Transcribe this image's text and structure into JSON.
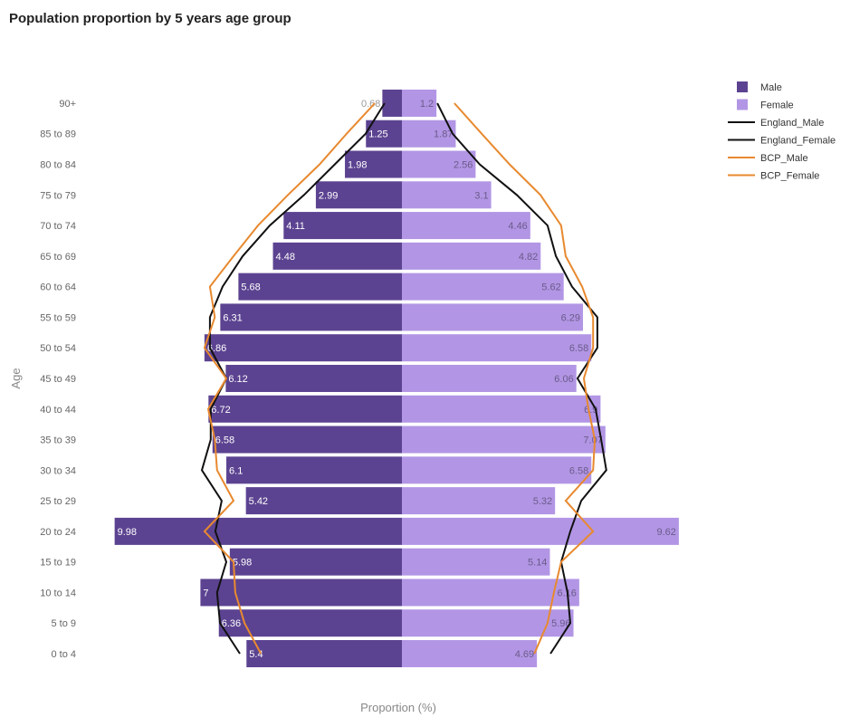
{
  "chart_data": {
    "type": "bar",
    "orientation": "horizontal-pyramid",
    "title": "Population proportion by 5 years age group",
    "xlabel": "Proportion (%)",
    "ylabel": "Age",
    "categories": [
      "0 to 4",
      "5 to 9",
      "10 to 14",
      "15 to 19",
      "20 to 24",
      "25 to 29",
      "30 to 34",
      "35 to 39",
      "40 to 44",
      "45 to 49",
      "50 to 54",
      "55 to 59",
      "60 to 64",
      "65 to 69",
      "70 to 74",
      "75 to 79",
      "80 to 84",
      "85 to 89",
      "90+"
    ],
    "bar_series": [
      {
        "name": "Male",
        "color": "#5c4391",
        "values": [
          5.4,
          6.36,
          7,
          5.98,
          9.98,
          5.42,
          6.1,
          6.58,
          6.72,
          6.12,
          6.86,
          6.31,
          5.68,
          4.48,
          4.11,
          2.99,
          1.98,
          1.25,
          0.68
        ]
      },
      {
        "name": "Female",
        "color": "#b296e5",
        "values": [
          4.69,
          5.96,
          6.16,
          5.14,
          9.62,
          5.32,
          6.58,
          7.07,
          6.9,
          6.06,
          6.58,
          6.29,
          5.62,
          4.82,
          4.46,
          3.1,
          2.56,
          1.87,
          1.2
        ]
      }
    ],
    "line_series": [
      {
        "name": "England_Male",
        "color": "#111111",
        "side": "left",
        "values": [
          5.63,
          6.32,
          6.42,
          6.1,
          6.48,
          6.26,
          6.95,
          6.64,
          6.64,
          6.1,
          6.67,
          6.67,
          6.23,
          5.53,
          4.59,
          3.4,
          2.33,
          1.26,
          0.6
        ]
      },
      {
        "name": "England_Female",
        "color": "#111111",
        "side": "right",
        "values": [
          5.16,
          5.85,
          5.75,
          5.53,
          5.85,
          6.23,
          7.1,
          6.92,
          6.73,
          6.1,
          6.79,
          6.79,
          5.91,
          5.35,
          5.06,
          3.99,
          2.7,
          1.76,
          1.23
        ]
      },
      {
        "name": "BCP_Male",
        "color": "#e8892f",
        "side": "left",
        "values": [
          4.9,
          5.47,
          5.79,
          5.85,
          6.86,
          5.85,
          6.42,
          6.5,
          6.73,
          6.1,
          6.86,
          6.5,
          6.67,
          5.85,
          5.0,
          3.96,
          2.86,
          1.92,
          0.94
        ]
      },
      {
        "name": "BCP_Female",
        "color": "#e8892f",
        "side": "right",
        "values": [
          4.6,
          5.06,
          5.28,
          5.53,
          6.64,
          5.69,
          6.64,
          6.7,
          6.48,
          6.32,
          6.64,
          6.64,
          6.26,
          5.69,
          5.53,
          4.81,
          3.74,
          2.77,
          1.82
        ]
      }
    ],
    "legend_position": "top-right",
    "grid": false
  }
}
